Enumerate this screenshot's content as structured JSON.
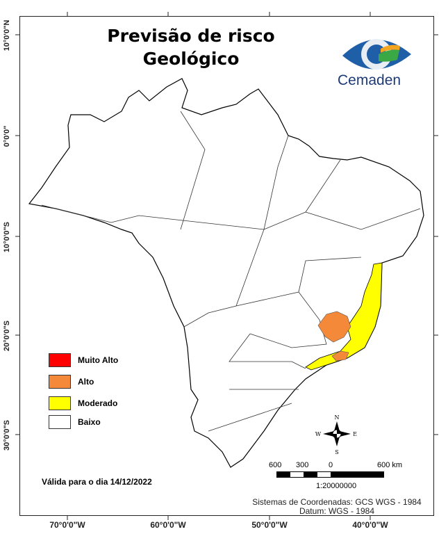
{
  "title": {
    "line1": "Previsão de risco",
    "line2": "Geológico"
  },
  "logo": {
    "text": "Cemaden"
  },
  "axes": {
    "lat_labels": [
      "10°0'0\"N",
      "0°0'0\"",
      "10°0'0\"S",
      "20°0'0\"S",
      "30°0'0\"S"
    ],
    "lon_labels": [
      "70°0'0\"W",
      "60°0'0\"W",
      "50°0'0\"W",
      "40°0'0\"W"
    ]
  },
  "legend": [
    {
      "label": "Muito Alto",
      "color": "#ff0000"
    },
    {
      "label": "Alto",
      "color": "#f5893a"
    },
    {
      "label": "Moderado",
      "color": "#ffff00"
    },
    {
      "label": "Baixo",
      "color": "#ffffff"
    }
  ],
  "validity": "Válida para o dia 14/12/2022",
  "compass": {
    "n": "N",
    "s": "S",
    "e": "E",
    "w": "W"
  },
  "scale_bar": {
    "labels": [
      "600",
      "300",
      "0",
      "600 km"
    ],
    "ratio": "1:20000000"
  },
  "coordinates": {
    "line1": "Sistemas de Coordenadas: GCS WGS - 1984",
    "line2": "Datum: WGS - 1984"
  }
}
